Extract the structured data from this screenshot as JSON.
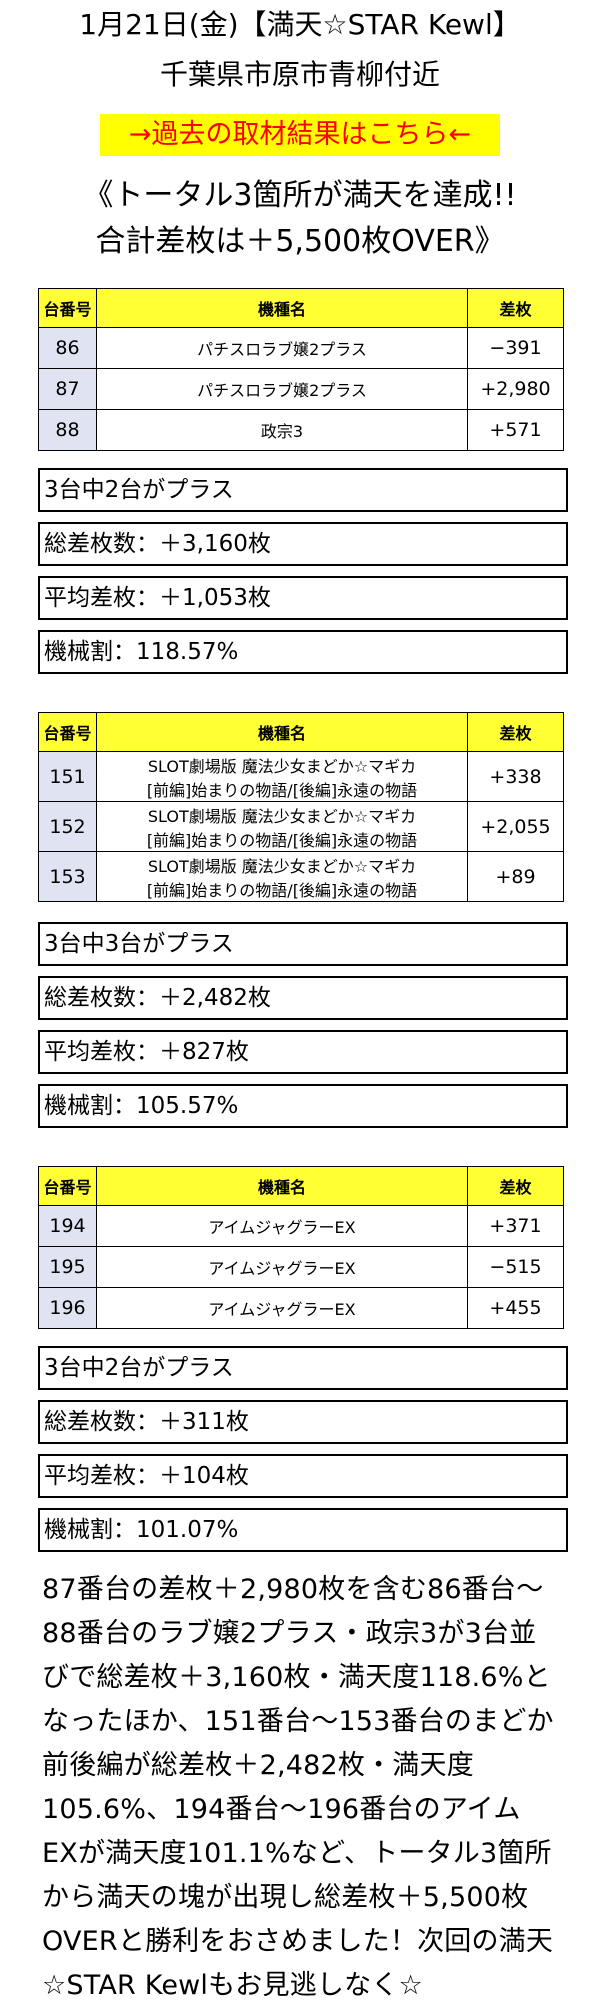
{
  "header": {
    "title_line1": "1月21日(金)【満天☆STAR Kewl】",
    "title_line2": "千葉県市原市青柳付近",
    "link_label": "→過去の取材結果はこちら←",
    "headline_line1": "《トータル3箇所が満天を達成!!",
    "headline_line2": "合計差枚は＋5,500枚OVER》"
  },
  "groups": [
    {
      "columns": [
        "台番号",
        "機種名",
        "差枚"
      ],
      "rows": [
        {
          "num": "86",
          "name": "パチスロラブ嬢2プラス",
          "name2": "",
          "diff": "−391"
        },
        {
          "num": "87",
          "name": "パチスロラブ嬢2プラス",
          "name2": "",
          "diff": "+2,980"
        },
        {
          "num": "88",
          "name": "政宗3",
          "name2": "",
          "diff": "+571"
        }
      ],
      "summary": [
        "3台中2台がプラス",
        "総差枚数：＋3,160枚",
        "平均差枚：＋1,053枚",
        "機械割：118.57%"
      ]
    },
    {
      "columns": [
        "台番号",
        "機種名",
        "差枚"
      ],
      "rows": [
        {
          "num": "151",
          "name": "SLOT劇場版 魔法少女まどか☆マギカ",
          "name2": "[前編]始まりの物語/[後編]永遠の物語",
          "diff": "+338"
        },
        {
          "num": "152",
          "name": "SLOT劇場版 魔法少女まどか☆マギカ",
          "name2": "[前編]始まりの物語/[後編]永遠の物語",
          "diff": "+2,055"
        },
        {
          "num": "153",
          "name": "SLOT劇場版 魔法少女まどか☆マギカ",
          "name2": "[前編]始まりの物語/[後編]永遠の物語",
          "diff": "+89"
        }
      ],
      "summary": [
        "3台中3台がプラス",
        "総差枚数：＋2,482枚",
        "平均差枚：＋827枚",
        "機械割：105.57%"
      ]
    },
    {
      "columns": [
        "台番号",
        "機種名",
        "差枚"
      ],
      "rows": [
        {
          "num": "194",
          "name": "アイムジャグラーEX",
          "name2": "",
          "diff": "+371"
        },
        {
          "num": "195",
          "name": "アイムジャグラーEX",
          "name2": "",
          "diff": "−515"
        },
        {
          "num": "196",
          "name": "アイムジャグラーEX",
          "name2": "",
          "diff": "+455"
        }
      ],
      "summary": [
        "3台中2台がプラス",
        "総差枚数：＋311枚",
        "平均差枚：＋104枚",
        "機械割：101.07%"
      ]
    }
  ],
  "paragraph": [
    "87番台の差枚＋2,980枚を含む86番台〜",
    "88番台のラブ嬢2プラス・政宗3が3台並",
    "びで総差枚＋3,160枚・満天度118.6%と",
    "なったほか、151番台〜153番台のまどか",
    "前後編が総差枚＋2,482枚・満天度",
    "105.6%、194番台〜196番台のアイム",
    "EXが満天度101.1%など、トータル3箇所",
    "から満天の塊が出現し総差枚＋5,500枚",
    "OVERと勝利をおさめました！次回の満天",
    "☆STAR Kewlもお見逃しなく☆"
  ]
}
